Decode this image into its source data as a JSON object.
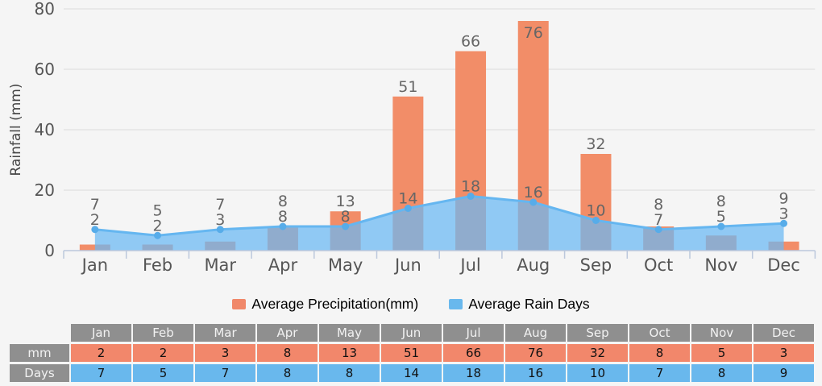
{
  "chart_data": {
    "type": "combo",
    "categories": [
      "Jan",
      "Feb",
      "Mar",
      "Apr",
      "May",
      "Jun",
      "Jul",
      "Aug",
      "Sep",
      "Oct",
      "Nov",
      "Dec"
    ],
    "series": [
      {
        "name": "Average Precipitation(mm)",
        "type": "bar",
        "values": [
          2,
          2,
          3,
          8,
          13,
          51,
          66,
          76,
          32,
          8,
          5,
          3
        ],
        "color": "#F28D68",
        "swatch_color": "#F0886A"
      },
      {
        "name": "Average Rain Days",
        "type": "area-line",
        "values": [
          7,
          5,
          7,
          8,
          8,
          14,
          18,
          16,
          10,
          7,
          8,
          9
        ],
        "area_fill": "rgba(106,185,244,0.72)",
        "line_color": "#65B6F0",
        "marker_color": "#57ACE9",
        "swatch_color": "#69B8ED"
      }
    ],
    "title": "",
    "xlabel": "",
    "ylabel": "Rainfall (mm)",
    "ylim": [
      0,
      80
    ],
    "yticks": [
      0,
      20,
      40,
      60,
      80
    ],
    "grid": true,
    "legend_position": "bottom"
  },
  "table": {
    "corner": "",
    "columns": [
      "Jan",
      "Feb",
      "Mar",
      "Apr",
      "May",
      "Jun",
      "Jul",
      "Aug",
      "Sep",
      "Oct",
      "Nov",
      "Dec"
    ],
    "rows": [
      {
        "label": "mm",
        "values": [
          2,
          2,
          3,
          8,
          13,
          51,
          66,
          76,
          32,
          8,
          5,
          3
        ],
        "color": "#F2876B"
      },
      {
        "label": "Days",
        "values": [
          7,
          5,
          7,
          8,
          8,
          14,
          18,
          16,
          10,
          7,
          8,
          9
        ],
        "color": "#69B8ED"
      }
    ],
    "header_color": "#8F8F8F"
  },
  "colors": {
    "background": "#F5F5F5",
    "gridline": "#DCDCDC",
    "axis": "#BCC8DC",
    "value_label": "#666666",
    "tick_label": "#555555",
    "axis_title": "#444444",
    "legend_text": "#000000"
  }
}
